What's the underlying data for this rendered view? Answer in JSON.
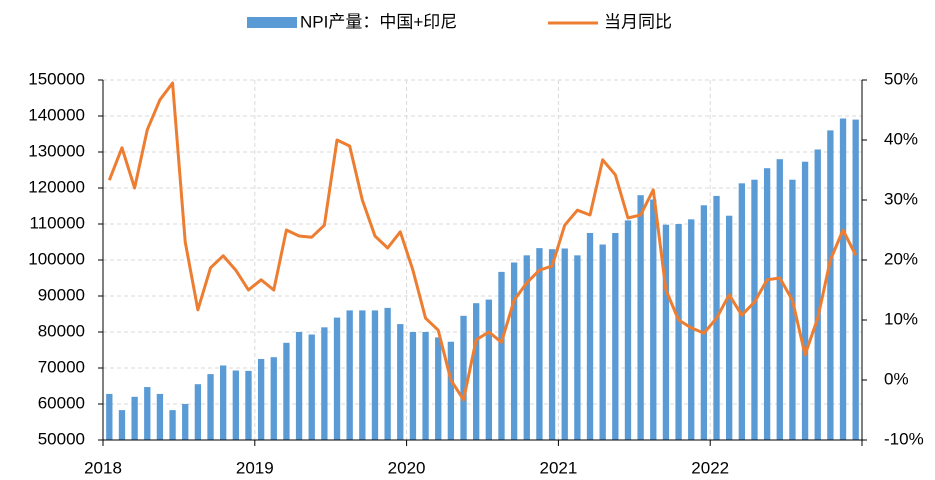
{
  "chart_data": {
    "type": "bar-line",
    "categories": [
      "2018",
      null,
      null,
      null,
      null,
      null,
      null,
      null,
      null,
      null,
      null,
      null,
      "2019",
      null,
      null,
      null,
      null,
      null,
      null,
      null,
      null,
      null,
      null,
      null,
      "2020",
      null,
      null,
      null,
      null,
      null,
      null,
      null,
      null,
      null,
      null,
      null,
      "2021",
      null,
      null,
      null,
      null,
      null,
      null,
      null,
      null,
      null,
      null,
      null,
      "2022",
      null,
      null,
      null,
      null,
      null,
      null,
      null,
      null,
      null,
      null,
      null
    ],
    "series": [
      {
        "name": "NPI产量：中国+印尼",
        "type": "bar",
        "color": "#5b9bd5",
        "values": [
          62800,
          58300,
          62000,
          64700,
          62800,
          58300,
          60000,
          65500,
          68300,
          70700,
          69300,
          69200,
          72500,
          73000,
          77000,
          80000,
          79300,
          81300,
          84000,
          86000,
          86000,
          86000,
          86700,
          82200,
          80000,
          80000,
          78500,
          77300,
          84500,
          88000,
          89000,
          96700,
          99300,
          101300,
          103300,
          103000,
          103200,
          101300,
          107500,
          104300,
          107500,
          111000,
          118000,
          116800,
          109800,
          110000,
          111300,
          115200,
          117800,
          112300,
          121300,
          122300,
          125500,
          128000,
          122300,
          127300,
          130700,
          136000,
          139300,
          139000
        ]
      },
      {
        "name": "当月同比",
        "type": "line",
        "axis": "y2",
        "color": "#ed7d31",
        "values": [
          33.3,
          38.7,
          32,
          41.7,
          46.7,
          49.5,
          23,
          11.7,
          18.7,
          20.7,
          18.3,
          15,
          16.7,
          15,
          25,
          24,
          23.8,
          25.8,
          40,
          39,
          30,
          24,
          22,
          24.7,
          18.3,
          10.3,
          8.3,
          0,
          -3.3,
          6.7,
          8,
          6.3,
          13.3,
          16.2,
          18.3,
          19,
          25.8,
          28.3,
          27.5,
          36.7,
          34.2,
          27,
          27.5,
          31.7,
          15,
          10,
          8.7,
          7.8,
          10.3,
          14.2,
          10.8,
          13,
          16.7,
          17,
          13.3,
          4.2,
          10.3,
          20,
          25,
          20.8
        ]
      }
    ],
    "ylim": [
      50000,
      150000
    ],
    "yticks": [
      50000,
      60000,
      70000,
      80000,
      90000,
      100000,
      110000,
      120000,
      130000,
      140000,
      150000
    ],
    "y2lim": [
      -10,
      50
    ],
    "y2ticks": [
      {
        "value": -10,
        "label": "-10%"
      },
      {
        "value": 0,
        "label": "0%"
      },
      {
        "value": 10,
        "label": "10%"
      },
      {
        "value": 20,
        "label": "20%"
      },
      {
        "value": 30,
        "label": "30%"
      },
      {
        "value": 40,
        "label": "40%"
      },
      {
        "value": 50,
        "label": "50%"
      }
    ],
    "grid": true,
    "legend": "top"
  }
}
